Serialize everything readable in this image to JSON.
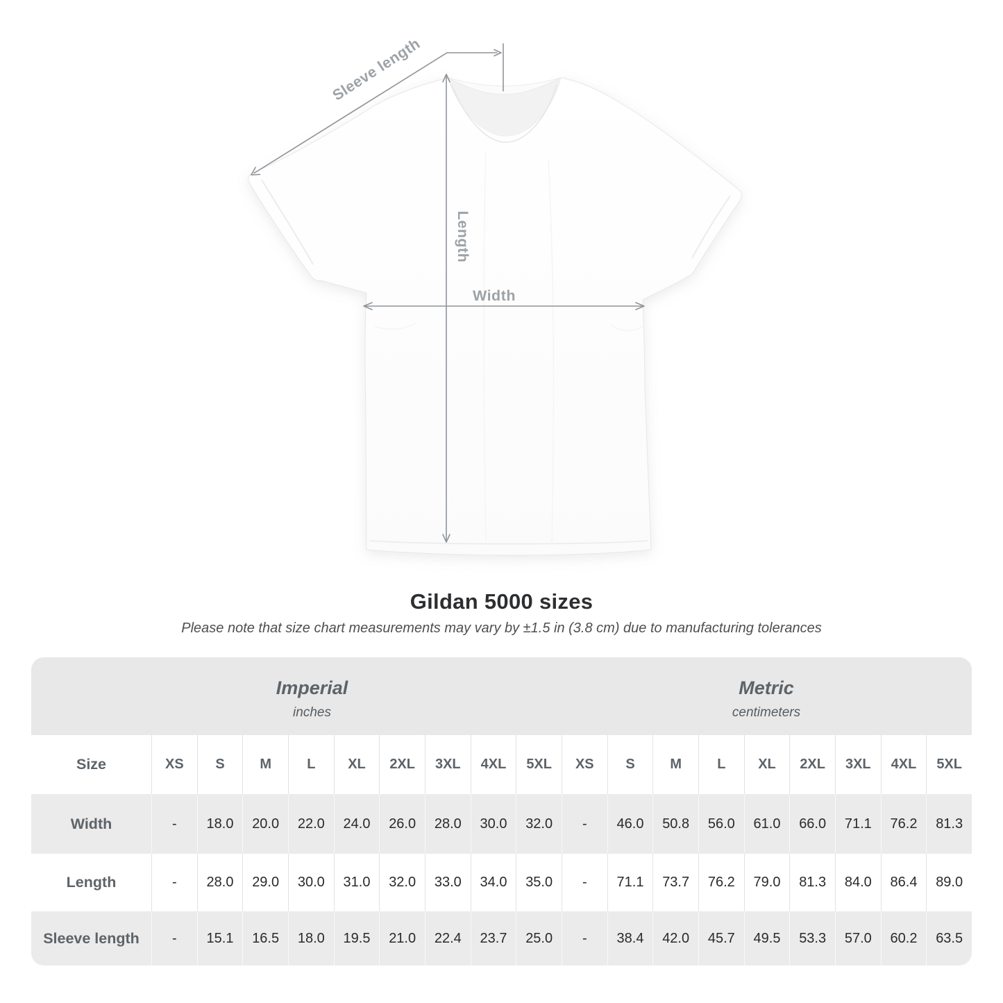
{
  "diagram": {
    "sleeve_length_label": "Sleeve length",
    "length_label": "Length",
    "width_label": "Width"
  },
  "title": "Gildan 5000 sizes",
  "subtitle": "Please note that size chart measurements may vary by ±1.5 in (3.8 cm) due to manufacturing tolerances",
  "chart_data": {
    "type": "table",
    "title": "Gildan 5000 sizes",
    "unit_groups": [
      {
        "label": "Imperial",
        "sublabel": "inches"
      },
      {
        "label": "Metric",
        "sublabel": "centimeters"
      }
    ],
    "row_header": "Size",
    "columns": [
      "XS",
      "S",
      "M",
      "L",
      "XL",
      "2XL",
      "3XL",
      "4XL",
      "5XL"
    ],
    "rows": [
      {
        "label": "Width",
        "imperial": [
          "-",
          "18.0",
          "20.0",
          "22.0",
          "24.0",
          "26.0",
          "28.0",
          "30.0",
          "32.0"
        ],
        "metric": [
          "-",
          "46.0",
          "50.8",
          "56.0",
          "61.0",
          "66.0",
          "71.1",
          "76.2",
          "81.3"
        ]
      },
      {
        "label": "Length",
        "imperial": [
          "-",
          "28.0",
          "29.0",
          "30.0",
          "31.0",
          "32.0",
          "33.0",
          "34.0",
          "35.0"
        ],
        "metric": [
          "-",
          "71.1",
          "73.7",
          "76.2",
          "79.0",
          "81.3",
          "84.0",
          "86.4",
          "89.0"
        ]
      },
      {
        "label": "Sleeve length",
        "imperial": [
          "-",
          "15.1",
          "16.5",
          "18.0",
          "19.5",
          "21.0",
          "22.4",
          "23.7",
          "25.0"
        ],
        "metric": [
          "-",
          "38.4",
          "42.0",
          "45.7",
          "49.5",
          "53.3",
          "57.0",
          "60.2",
          "63.5"
        ]
      }
    ]
  },
  "colors": {
    "dimension_line": "#8f9499",
    "dimension_label": "#9da2a7",
    "band_bg": "#e8e8e8",
    "row_alt_bg": "#ebebeb",
    "header_text": "#5d6368",
    "value_text": "#292a2c"
  }
}
